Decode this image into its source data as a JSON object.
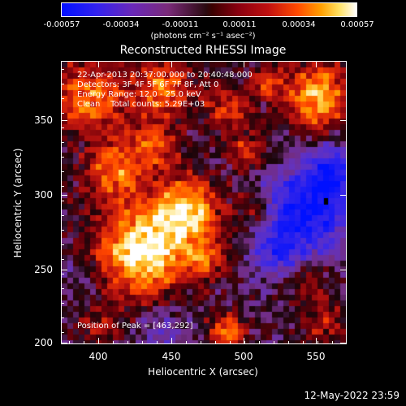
{
  "colorbar": {
    "ticks": [
      "-0.00057",
      "-0.00034",
      "-0.00011",
      "0.00011",
      "0.00034",
      "0.00057"
    ],
    "units": "(photons cm⁻² s⁻¹ asec⁻²)"
  },
  "title": "Reconstructed RHESSI Image",
  "annotations": {
    "time_range": "22-Apr-2013 20:37:00.000 to 20:40:48.000",
    "detectors": "Detectors: 3F 4F 5F 6F 7F 8F, Att 0",
    "energy_range": "Energy Range: 12.0 - 25.0 keV",
    "clean_counts": "Clean    Total counts: 5.29E+03",
    "peak_position": "Position of Peak = [463,292]"
  },
  "axes": {
    "xlabel": "Heliocentric X (arcsec)",
    "ylabel": "Heliocentric Y (arcsec)",
    "xticks": [
      "400",
      "450",
      "500",
      "550"
    ],
    "yticks": [
      "350",
      "300",
      "250",
      "200"
    ],
    "xlim": [
      375,
      570
    ],
    "ylim": [
      198,
      392
    ]
  },
  "timestamp": "12-May-2022 23:59",
  "colors": {
    "background": "#000000",
    "foreground": "#ffffff"
  }
}
